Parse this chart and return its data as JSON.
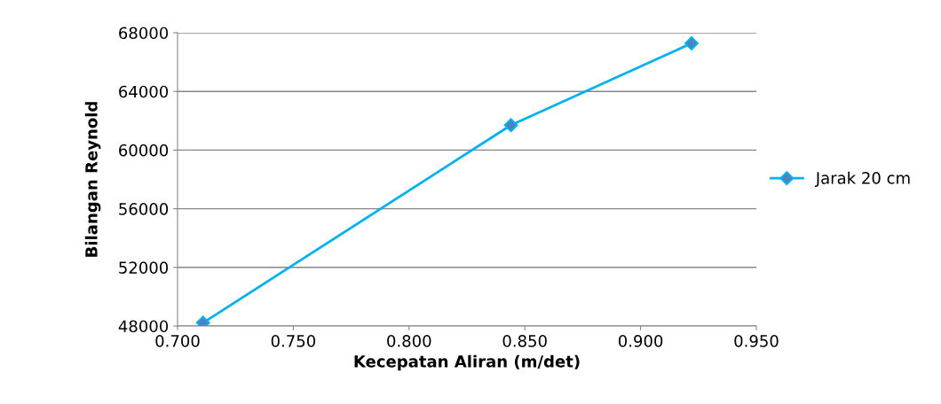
{
  "chart_data": {
    "type": "line",
    "xlabel": "Kecepatan Aliran (m/det)",
    "ylabel": "Bilangan Reynold",
    "x": [
      0.711,
      0.844,
      0.922
    ],
    "series": [
      {
        "name": "Jarak 20 cm",
        "color": "#00b0f0",
        "values": [
          48220,
          61700,
          67280
        ]
      }
    ],
    "xlim": [
      0.7,
      0.95
    ],
    "xticks": [
      {
        "value": 0.7,
        "label": "0.700"
      },
      {
        "value": 0.75,
        "label": "0.750"
      },
      {
        "value": 0.8,
        "label": "0.800"
      },
      {
        "value": 0.85,
        "label": "0.850"
      },
      {
        "value": 0.9,
        "label": "0.900"
      },
      {
        "value": 0.95,
        "label": "0.950"
      }
    ],
    "ylim": [
      48000,
      68000
    ],
    "yticks": [
      48000,
      52000,
      56000,
      60000,
      64000,
      68000
    ],
    "grid": "y",
    "legend": "right",
    "marker": "diamond",
    "line_style": "solid"
  }
}
